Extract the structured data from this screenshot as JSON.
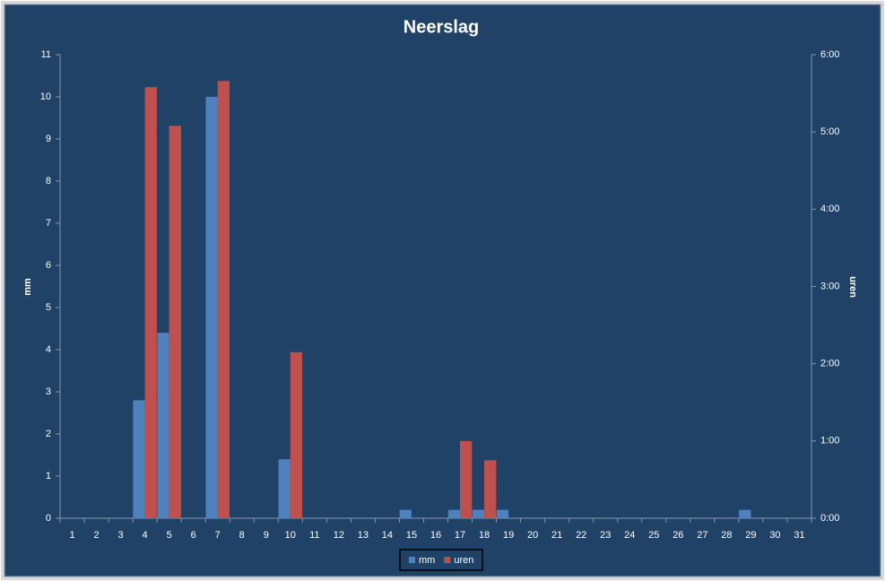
{
  "chart_data": {
    "type": "bar",
    "title": "Neerslag",
    "categories": [
      "1",
      "2",
      "3",
      "4",
      "5",
      "6",
      "7",
      "8",
      "9",
      "10",
      "11",
      "12",
      "13",
      "14",
      "15",
      "16",
      "17",
      "18",
      "19",
      "20",
      "21",
      "22",
      "23",
      "24",
      "25",
      "26",
      "27",
      "28",
      "29",
      "30",
      "31"
    ],
    "series": [
      {
        "name": "mm",
        "color": "#4f81bd",
        "values": [
          0,
          0,
          0,
          2.8,
          4.4,
          0,
          10,
          0,
          0,
          1.4,
          0,
          0,
          0,
          0,
          0.2,
          0,
          0.2,
          0.2,
          0.2,
          0,
          0,
          0,
          0,
          0,
          0,
          0,
          0,
          0,
          0.2,
          0,
          0
        ]
      },
      {
        "name": "uren",
        "color": "#c0504d",
        "axis": "y2",
        "values": [
          0,
          0,
          0,
          5.58,
          5.08,
          0,
          5.66,
          0,
          0,
          2.15,
          0,
          0,
          0,
          0,
          0,
          0,
          1,
          0.75,
          0,
          0,
          0,
          0,
          0,
          0,
          0,
          0,
          0,
          0,
          0,
          0,
          0
        ]
      }
    ],
    "ylabel": "mm",
    "y2label": "uren",
    "ylim": [
      0,
      11
    ],
    "yticks": [
      0,
      1,
      2,
      3,
      4,
      5,
      6,
      7,
      8,
      9,
      10,
      11
    ],
    "y2lim": [
      0,
      6
    ],
    "y2ticks": [
      {
        "value": 0,
        "label": "0:00"
      },
      {
        "value": 1,
        "label": "1:00"
      },
      {
        "value": 2,
        "label": "2:00"
      },
      {
        "value": 3,
        "label": "3:00"
      },
      {
        "value": 4,
        "label": "4:00"
      },
      {
        "value": 5,
        "label": "5:00"
      },
      {
        "value": 6,
        "label": "6:00"
      }
    ],
    "legend": "bottom"
  }
}
